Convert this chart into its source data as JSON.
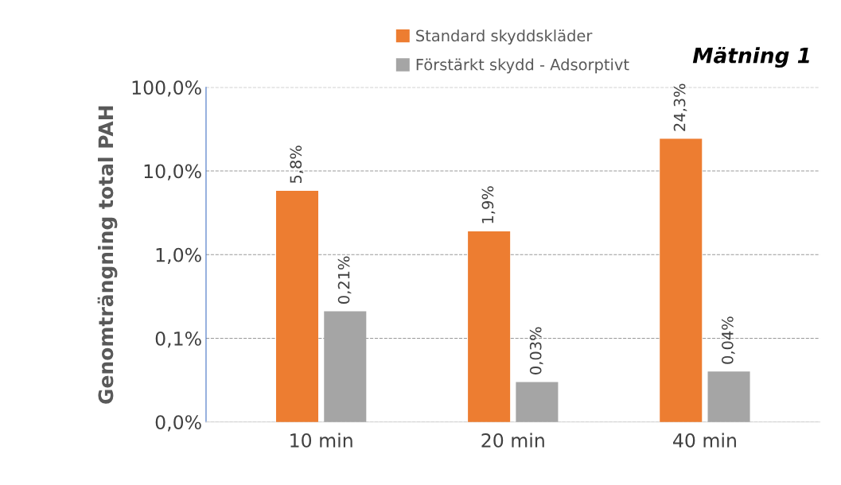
{
  "chart_data": {
    "type": "bar",
    "title": "Mätning 1",
    "ylabel": "Genomträngning total PAH",
    "categories": [
      "10 min",
      "20 min",
      "40 min"
    ],
    "series": [
      {
        "name": "Standard skyddskläder",
        "color": "#ed7d31",
        "values": [
          5.8,
          1.9,
          24.3
        ],
        "value_labels": [
          "5,8%",
          "1,9%",
          "24,3%"
        ]
      },
      {
        "name": "Förstärkt skydd - Adsorptivt",
        "color": "#a5a5a5",
        "values": [
          0.21,
          0.03,
          0.04
        ],
        "value_labels": [
          "0,21%",
          "0,03%",
          "0,04%"
        ]
      }
    ],
    "log": true,
    "ylim": [
      0.01,
      100
    ],
    "yticks": [
      {
        "value": 0.01,
        "label": "0,0%"
      },
      {
        "value": 0.1,
        "label": "0,1%"
      },
      {
        "value": 1,
        "label": "1,0%"
      },
      {
        "value": 10,
        "label": "10,0%"
      },
      {
        "value": 100,
        "label": "100,0%"
      }
    ],
    "grid": "y",
    "legend": "top"
  }
}
